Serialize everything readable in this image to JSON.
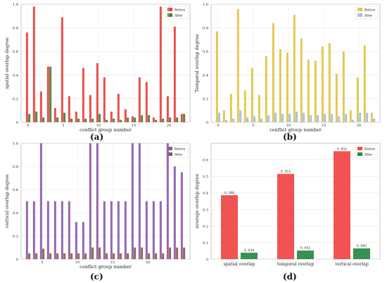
{
  "panels": [
    {
      "id": "a",
      "caption": "(a)",
      "chart_data": {
        "type": "bar",
        "xlabel": "conflict group number",
        "ylabel": "spatial overlap degree",
        "ylim": [
          0,
          1.0
        ],
        "yticks": [
          0,
          0.2,
          0.4,
          0.6,
          0.8,
          1.0
        ],
        "xticks": [
          0,
          5,
          10,
          15,
          20
        ],
        "legend_position": "top-right",
        "grid": true,
        "x": [
          0,
          1,
          2,
          3,
          4,
          5,
          6,
          7,
          8,
          9,
          10,
          11,
          12,
          13,
          14,
          15,
          16,
          17,
          18,
          19,
          20,
          21,
          22
        ],
        "series": [
          {
            "name": "Before",
            "color": "#e8413a",
            "values": [
              0.76,
              0.98,
              0.26,
              0.47,
              0.12,
              0.89,
              0.22,
              0.09,
              0.46,
              0.23,
              0.5,
              0.38,
              0.09,
              0.24,
              0.11,
              0.05,
              0.38,
              0.34,
              0.04,
              0.98,
              0.22,
              0.81,
              0.07
            ]
          },
          {
            "name": "After",
            "color": "#4a7a3a",
            "values": [
              0.07,
              0.09,
              0.04,
              0.47,
              0.04,
              0.08,
              0.03,
              0.03,
              0.03,
              0.03,
              0.07,
              0.02,
              0.03,
              0.02,
              0.04,
              0.04,
              0.06,
              0.06,
              0.02,
              0.03,
              0.04,
              0.04,
              0.07
            ]
          }
        ]
      }
    },
    {
      "id": "b",
      "caption": "(b)",
      "chart_data": {
        "type": "bar",
        "xlabel": "conflict group number",
        "ylabel": "Temporal overlap degree",
        "ylim": [
          0,
          1.0
        ],
        "yticks": [
          0,
          0.2,
          0.4,
          0.6,
          0.8,
          1.0
        ],
        "xticks": [
          0,
          5,
          10,
          15,
          20
        ],
        "legend_position": "top-right",
        "grid": true,
        "x": [
          0,
          1,
          2,
          3,
          4,
          5,
          6,
          7,
          8,
          9,
          10,
          11,
          12,
          13,
          14,
          15,
          16,
          17,
          18,
          19,
          20,
          21,
          22
        ],
        "series": [
          {
            "name": "Before",
            "color": "#e2c442",
            "values": [
              0.77,
              0.1,
              0.24,
              0.96,
              0.27,
              0.46,
              0.23,
              0.56,
              0.84,
              0.62,
              0.59,
              0.91,
              0.71,
              0.53,
              0.52,
              0.64,
              0.67,
              0.41,
              0.6,
              0.1,
              0.38,
              0.65,
              0.08
            ]
          },
          {
            "name": "After",
            "color": "#9bbfe8",
            "values": [
              0.08,
              0.02,
              0.03,
              0.1,
              0.04,
              0.05,
              0.03,
              0.06,
              0.08,
              0.07,
              0.07,
              0.09,
              0.08,
              0.06,
              0.06,
              0.07,
              0.07,
              0.05,
              0.07,
              0.02,
              0.08,
              0.08,
              0.03
            ]
          }
        ]
      }
    },
    {
      "id": "c",
      "caption": "(c)",
      "chart_data": {
        "type": "bar",
        "xlabel": "conflict group number",
        "ylabel": "vertical overlap degree",
        "ylim": [
          0,
          1.0
        ],
        "yticks": [
          0,
          0.2,
          0.4,
          0.6,
          0.8,
          1.0
        ],
        "xticks": [
          5,
          10,
          15,
          20
        ],
        "legend_position": "top-right",
        "grid": true,
        "x": [
          3,
          4,
          5,
          6,
          7,
          8,
          9,
          10,
          11,
          12,
          13,
          14,
          15,
          16,
          17,
          18,
          19,
          20,
          21,
          22,
          23,
          24,
          25
        ],
        "series": [
          {
            "name": "Before",
            "color": "#8e5aa8",
            "values": [
              0.5,
              0.5,
              1.0,
              0.5,
              0.5,
              0.5,
              0.5,
              0.32,
              0.32,
              1.0,
              1.0,
              0.5,
              0.5,
              0.5,
              0.5,
              1.0,
              1.0,
              0.5,
              0.5,
              0.5,
              1.0,
              0.8,
              0.75
            ]
          },
          {
            "name": "After",
            "color": "#8a5a46",
            "values": [
              0.05,
              0.05,
              0.09,
              0.05,
              0.05,
              0.05,
              0.05,
              0.05,
              0.05,
              0.1,
              0.1,
              0.05,
              0.05,
              0.05,
              0.05,
              0.1,
              0.1,
              0.05,
              0.05,
              0.05,
              0.1,
              0.1,
              0.1
            ]
          }
        ]
      }
    },
    {
      "id": "d",
      "caption": "(d)",
      "chart_data": {
        "type": "bar",
        "xlabel": "",
        "ylabel": "average overlap degree",
        "ylim": [
          0,
          0.7
        ],
        "yticks": [
          0,
          0.1,
          0.2,
          0.3,
          0.4,
          0.5,
          0.6
        ],
        "categories": [
          "spatial overlap",
          "temporal overlap",
          "vertical overlap"
        ],
        "legend_position": "top-right",
        "grid": true,
        "series": [
          {
            "name": "Before",
            "color": "#f04a4a",
            "values": [
              0.386,
              0.515,
              0.652
            ],
            "labels": [
              "0. 386",
              "0. 515",
              "0. 652"
            ]
          },
          {
            "name": "After",
            "color": "#2e8a4a",
            "values": [
              0.039,
              0.052,
              0.065
            ],
            "labels": [
              "0. 039",
              "0. 052",
              "0. 065"
            ]
          }
        ]
      }
    }
  ]
}
